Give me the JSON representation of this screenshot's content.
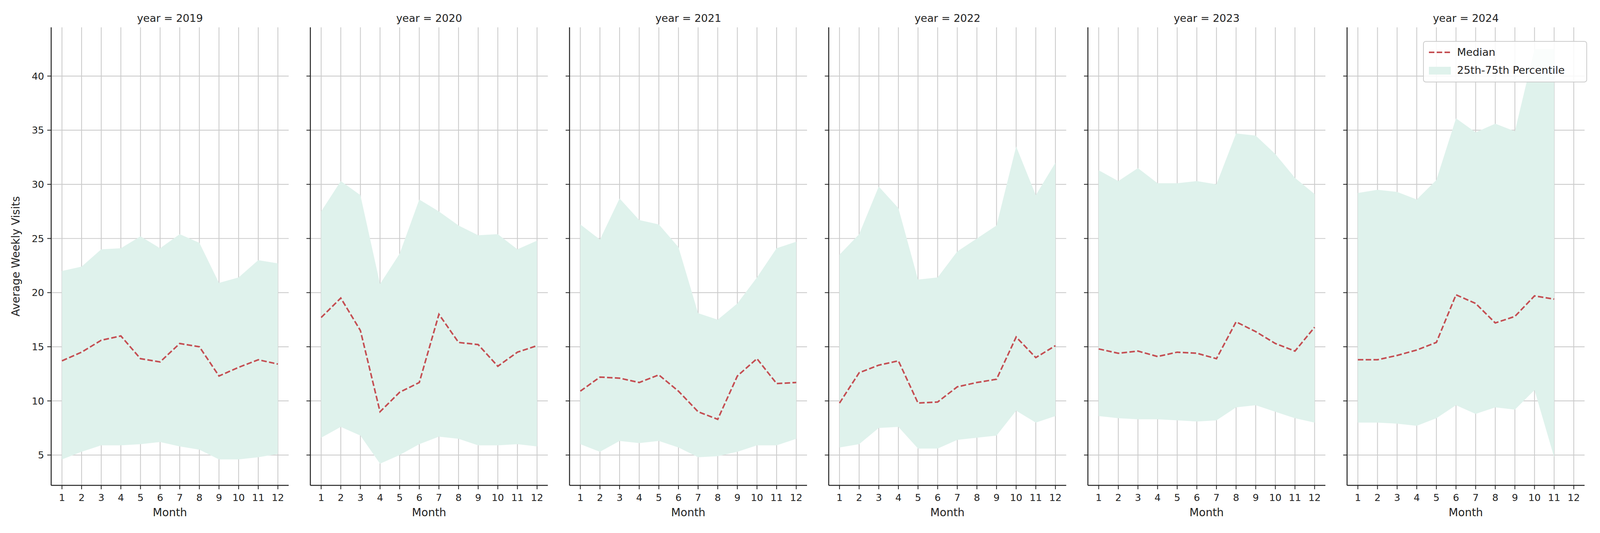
{
  "chart_data": [
    {
      "type": "line",
      "title": "year = 2019",
      "x_label": "Month",
      "y_label": "Average Weekly Visits",
      "x": [
        1,
        2,
        3,
        4,
        5,
        6,
        7,
        8,
        9,
        10,
        11,
        12
      ],
      "xlim": [
        0.45,
        12.55
      ],
      "xticks": [
        1,
        2,
        3,
        4,
        5,
        6,
        7,
        8,
        9,
        10,
        11,
        12
      ],
      "ylim": [
        2.2,
        44.5
      ],
      "yticks": [
        5,
        10,
        15,
        20,
        25,
        30,
        35,
        40
      ],
      "grid": true,
      "series": [
        {
          "name": "Median",
          "type": "line",
          "color": "#c44e52",
          "line_style": "dashed",
          "values": [
            13.7,
            14.5,
            15.6,
            16.0,
            13.9,
            13.6,
            15.3,
            15.0,
            12.3,
            13.1,
            13.8,
            13.4
          ]
        },
        {
          "name": "25th-75th Percentile",
          "type": "area",
          "color": "#dff2ec",
          "values": [
            22.0,
            22.4,
            24.0,
            24.1,
            25.2,
            24.1,
            25.4,
            24.6,
            20.9,
            21.4,
            23.0,
            22.7
          ],
          "lower": [
            4.6,
            5.3,
            5.9,
            5.9,
            6.0,
            6.2,
            5.8,
            5.5,
            4.6,
            4.6,
            4.8,
            5.1
          ]
        }
      ]
    },
    {
      "type": "line",
      "title": "year = 2020",
      "x_label": "Month",
      "x": [
        1,
        2,
        3,
        4,
        5,
        6,
        7,
        8,
        9,
        10,
        11,
        12
      ],
      "xlim": [
        0.45,
        12.55
      ],
      "xticks": [
        1,
        2,
        3,
        4,
        5,
        6,
        7,
        8,
        9,
        10,
        11,
        12
      ],
      "ylim": [
        2.2,
        44.5
      ],
      "yticks": [
        5,
        10,
        15,
        20,
        25,
        30,
        35,
        40
      ],
      "grid": true,
      "tick_labels": "x",
      "series": [
        {
          "name": "Median",
          "type": "line",
          "color": "#c44e52",
          "line_style": "dashed",
          "values": [
            17.7,
            19.5,
            16.5,
            9.0,
            10.8,
            11.7,
            18.0,
            15.4,
            15.2,
            13.2,
            14.5,
            15.1
          ]
        },
        {
          "name": "25th-75th Percentile",
          "type": "area",
          "color": "#dff2ec",
          "values": [
            27.5,
            30.3,
            29.0,
            20.8,
            23.6,
            28.6,
            27.5,
            26.2,
            25.3,
            25.4,
            24.0,
            24.8
          ],
          "lower": [
            6.6,
            7.6,
            6.8,
            4.2,
            5.0,
            6.0,
            6.7,
            6.5,
            5.9,
            5.9,
            6.0,
            5.8
          ]
        }
      ]
    },
    {
      "type": "line",
      "title": "year = 2021",
      "x_label": "Month",
      "x": [
        1,
        2,
        3,
        4,
        5,
        6,
        7,
        8,
        9,
        10,
        11,
        12
      ],
      "xlim": [
        0.45,
        12.55
      ],
      "xticks": [
        1,
        2,
        3,
        4,
        5,
        6,
        7,
        8,
        9,
        10,
        11,
        12
      ],
      "ylim": [
        2.2,
        44.5
      ],
      "yticks": [
        5,
        10,
        15,
        20,
        25,
        30,
        35,
        40
      ],
      "grid": true,
      "tick_labels": "x",
      "series": [
        {
          "name": "Median",
          "type": "line",
          "color": "#c44e52",
          "line_style": "dashed",
          "values": [
            10.9,
            12.2,
            12.1,
            11.7,
            12.4,
            10.9,
            9.0,
            8.3,
            12.3,
            13.9,
            11.6,
            11.7
          ]
        },
        {
          "name": "25th-75th Percentile",
          "type": "area",
          "color": "#dff2ec",
          "values": [
            26.3,
            24.9,
            28.7,
            26.7,
            26.3,
            24.2,
            18.1,
            17.5,
            19.0,
            21.4,
            24.1,
            24.7
          ],
          "lower": [
            6.0,
            5.3,
            6.3,
            6.1,
            6.3,
            5.7,
            4.8,
            4.9,
            5.3,
            5.9,
            5.9,
            6.5
          ]
        }
      ]
    },
    {
      "type": "line",
      "title": "year = 2022",
      "x_label": "Month",
      "x": [
        1,
        2,
        3,
        4,
        5,
        6,
        7,
        8,
        9,
        10,
        11,
        12
      ],
      "xlim": [
        0.45,
        12.55
      ],
      "xticks": [
        1,
        2,
        3,
        4,
        5,
        6,
        7,
        8,
        9,
        10,
        11,
        12
      ],
      "ylim": [
        2.2,
        44.5
      ],
      "yticks": [
        5,
        10,
        15,
        20,
        25,
        30,
        35,
        40
      ],
      "grid": true,
      "tick_labels": "x",
      "series": [
        {
          "name": "Median",
          "type": "line",
          "color": "#c44e52",
          "line_style": "dashed",
          "values": [
            9.8,
            12.6,
            13.3,
            13.7,
            9.8,
            9.9,
            11.3,
            11.7,
            12.0,
            15.9,
            14.0,
            15.1
          ]
        },
        {
          "name": "25th-75th Percentile",
          "type": "area",
          "color": "#dff2ec",
          "values": [
            23.5,
            25.4,
            29.8,
            27.8,
            21.2,
            21.4,
            23.8,
            25.0,
            26.2,
            33.5,
            29.0,
            32.0
          ],
          "lower": [
            5.7,
            6.0,
            7.5,
            7.6,
            5.6,
            5.6,
            6.4,
            6.6,
            6.8,
            9.1,
            8.0,
            8.6
          ]
        }
      ]
    },
    {
      "type": "line",
      "title": "year = 2023",
      "x_label": "Month",
      "x": [
        1,
        2,
        3,
        4,
        5,
        6,
        7,
        8,
        9,
        10,
        11,
        12
      ],
      "xlim": [
        0.45,
        12.55
      ],
      "xticks": [
        1,
        2,
        3,
        4,
        5,
        6,
        7,
        8,
        9,
        10,
        11,
        12
      ],
      "ylim": [
        2.2,
        44.5
      ],
      "yticks": [
        5,
        10,
        15,
        20,
        25,
        30,
        35,
        40
      ],
      "grid": true,
      "tick_labels": "x",
      "series": [
        {
          "name": "Median",
          "type": "line",
          "color": "#c44e52",
          "line_style": "dashed",
          "values": [
            14.8,
            14.4,
            14.6,
            14.1,
            14.5,
            14.4,
            13.9,
            17.3,
            16.4,
            15.3,
            14.6,
            16.8
          ]
        },
        {
          "name": "25th-75th Percentile",
          "type": "area",
          "color": "#dff2ec",
          "values": [
            31.3,
            30.3,
            31.5,
            30.1,
            30.1,
            30.3,
            30.0,
            34.7,
            34.5,
            32.8,
            30.6,
            29.1
          ],
          "lower": [
            8.6,
            8.4,
            8.3,
            8.3,
            8.2,
            8.1,
            8.2,
            9.4,
            9.6,
            9.0,
            8.4,
            8.0
          ]
        }
      ]
    },
    {
      "type": "line",
      "title": "year = 2024",
      "x_label": "Month",
      "x": [
        1,
        2,
        3,
        4,
        5,
        6,
        7,
        8,
        9,
        10,
        11,
        12
      ],
      "xlim": [
        0.45,
        12.55
      ],
      "xticks": [
        1,
        2,
        3,
        4,
        5,
        6,
        7,
        8,
        9,
        10,
        11,
        12
      ],
      "ylim": [
        2.2,
        44.5
      ],
      "yticks": [
        5,
        10,
        15,
        20,
        25,
        30,
        35,
        40
      ],
      "grid": true,
      "tick_labels": "x",
      "legend": "upper right",
      "series": [
        {
          "name": "Median",
          "type": "line",
          "color": "#c44e52",
          "line_style": "dashed",
          "values": [
            13.8,
            13.8,
            14.2,
            14.7,
            15.4,
            19.8,
            19.0,
            17.2,
            17.8,
            19.7,
            19.4,
            null
          ]
        },
        {
          "name": "25th-75th Percentile",
          "type": "area",
          "color": "#dff2ec",
          "values": [
            29.2,
            29.5,
            29.3,
            28.6,
            30.4,
            36.1,
            34.8,
            35.6,
            34.9,
            42.5,
            42.5,
            null
          ],
          "lower": [
            8.0,
            8.0,
            7.9,
            7.7,
            8.4,
            9.6,
            8.8,
            9.4,
            9.2,
            11.0,
            4.8,
            null
          ]
        }
      ]
    }
  ]
}
